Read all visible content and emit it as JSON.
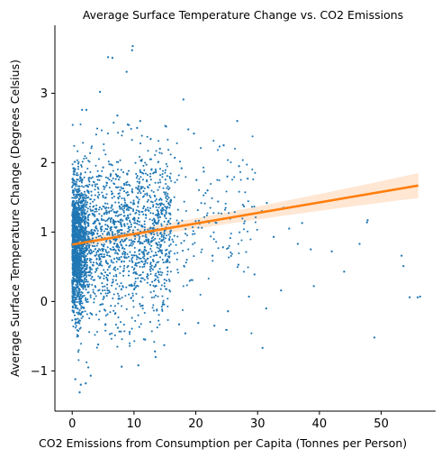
{
  "chart_data": {
    "type": "scatter",
    "title": "Average Surface Temperature Change vs. CO2 Emissions",
    "xlabel": "CO2 Emissions from Consumption per Capita (Tonnes per Person)",
    "ylabel": "Average Surface Temperature Change (Degrees Celsius)",
    "xlim": [
      -2.8,
      58.8
    ],
    "ylim": [
      -1.58,
      3.98
    ],
    "xticks": [
      0,
      10,
      20,
      30,
      40,
      50
    ],
    "yticks": [
      -1,
      0,
      1,
      2,
      3
    ],
    "grid": false,
    "colors": {
      "points": "#1f77b4",
      "regression": "#ff7f0e",
      "ci_band": "#ffe3cc"
    },
    "regression": {
      "x0": 0,
      "y0": 0.82,
      "x1": 56,
      "y1": 1.67,
      "ci_start": 0.06,
      "ci_end": 0.18
    },
    "scatter_points": [
      [
        9.8,
        3.68
      ],
      [
        9.7,
        3.62
      ],
      [
        5.8,
        3.52
      ],
      [
        6.5,
        3.51
      ],
      [
        8.8,
        3.31
      ],
      [
        4.5,
        3.02
      ],
      [
        18.0,
        2.91
      ],
      [
        26.7,
        2.6
      ],
      [
        1.6,
        2.76
      ],
      [
        2.3,
        2.76
      ],
      [
        7.3,
        2.68
      ],
      [
        9.0,
        2.55
      ],
      [
        11.0,
        2.6
      ],
      [
        10.5,
        2.5
      ],
      [
        15.2,
        2.52
      ],
      [
        19.7,
        2.42
      ],
      [
        18.8,
        2.48
      ],
      [
        24.5,
        2.25
      ],
      [
        27.0,
        1.95
      ],
      [
        21.3,
        1.87
      ],
      [
        25.1,
        1.8
      ],
      [
        28.4,
        1.77
      ],
      [
        31.5,
        1.42
      ],
      [
        30.7,
        1.3
      ],
      [
        34.2,
        1.35
      ],
      [
        35.1,
        1.05
      ],
      [
        36.5,
        0.83
      ],
      [
        38.6,
        0.75
      ],
      [
        42.0,
        0.72
      ],
      [
        46.5,
        0.83
      ],
      [
        47.8,
        1.17
      ],
      [
        47.7,
        1.14
      ],
      [
        53.3,
        0.66
      ],
      [
        53.6,
        0.51
      ],
      [
        54.6,
        0.06
      ],
      [
        55.9,
        0.06
      ],
      [
        56.3,
        0.07
      ],
      [
        48.9,
        -0.52
      ],
      [
        31.4,
        -0.1
      ],
      [
        30.8,
        -0.67
      ],
      [
        23.0,
        -0.35
      ],
      [
        17.3,
        -0.33
      ],
      [
        18.3,
        -0.46
      ],
      [
        13.4,
        -0.72
      ],
      [
        13.5,
        -0.8
      ],
      [
        10.7,
        -0.92
      ],
      [
        8.0,
        -0.94
      ],
      [
        3.0,
        -1.07
      ],
      [
        1.2,
        -1.31
      ],
      [
        2.2,
        -1.18
      ],
      [
        1.4,
        -1.2
      ],
      [
        0.5,
        -1.12
      ],
      [
        2.6,
        -0.95
      ],
      [
        4.2,
        -0.62
      ],
      [
        6.1,
        -0.47
      ],
      [
        7.4,
        -0.38
      ],
      [
        9.3,
        -0.44
      ],
      [
        11.8,
        -0.55
      ],
      [
        14.9,
        -0.63
      ],
      [
        20.4,
        -0.31
      ],
      [
        25.2,
        -0.14
      ],
      [
        28.6,
        0.07
      ],
      [
        33.8,
        0.16
      ],
      [
        39.1,
        0.22
      ],
      [
        44.0,
        0.43
      ],
      [
        29.5,
        0.39
      ],
      [
        26.9,
        0.53
      ],
      [
        22.7,
        0.66
      ],
      [
        24.4,
        0.78
      ],
      [
        32.6,
        0.93
      ],
      [
        37.2,
        1.13
      ],
      [
        27.8,
        1.37
      ],
      [
        23.6,
        1.44
      ],
      [
        21.9,
        1.6
      ],
      [
        20.1,
        1.75
      ],
      [
        17.7,
        1.92
      ],
      [
        16.6,
        2.07
      ],
      [
        14.2,
        2.2
      ],
      [
        12.7,
        2.34
      ],
      [
        8.2,
        2.45
      ]
    ]
  }
}
